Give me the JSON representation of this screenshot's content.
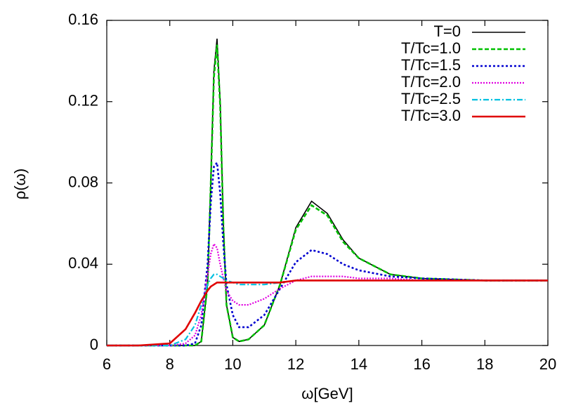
{
  "chart_data": {
    "type": "line",
    "xlabel": "ω[GeV]",
    "ylabel": "ρ(ω)",
    "xlim": [
      6,
      20
    ],
    "xticks": [
      6,
      8,
      10,
      12,
      14,
      16,
      18,
      20
    ],
    "ylim": [
      0,
      0.16
    ],
    "yticks": [
      0,
      0.04,
      0.08,
      0.12,
      0.16
    ],
    "legend": "upper right",
    "x": [
      6,
      7,
      8,
      8.5,
      8.8,
      9.0,
      9.2,
      9.3,
      9.4,
      9.5,
      9.6,
      9.7,
      9.8,
      10,
      10.2,
      10.5,
      11,
      11.5,
      12,
      12.5,
      13,
      13.5,
      14,
      15,
      16,
      18,
      20
    ],
    "series": [
      {
        "name": "T=0",
        "color": "#000000",
        "values": [
          0,
          0,
          0,
          0,
          0,
          0.002,
          0.03,
          0.08,
          0.135,
          0.151,
          0.12,
          0.06,
          0.02,
          0.004,
          0.002,
          0.003,
          0.01,
          0.03,
          0.058,
          0.071,
          0.065,
          0.052,
          0.043,
          0.035,
          0.033,
          0.032,
          0.032
        ]
      },
      {
        "name": "T/Tc=1.0",
        "color": "#00c000",
        "values": [
          0,
          0,
          0,
          0,
          0,
          0.002,
          0.03,
          0.079,
          0.132,
          0.148,
          0.118,
          0.059,
          0.02,
          0.004,
          0.002,
          0.003,
          0.01,
          0.03,
          0.057,
          0.069,
          0.064,
          0.051,
          0.043,
          0.035,
          0.033,
          0.032,
          0.032
        ]
      },
      {
        "name": "T/Tc=1.5",
        "color": "#0000d0",
        "values": [
          0,
          0,
          0,
          0,
          0.001,
          0.01,
          0.04,
          0.07,
          0.088,
          0.09,
          0.075,
          0.05,
          0.03,
          0.015,
          0.009,
          0.009,
          0.015,
          0.028,
          0.041,
          0.047,
          0.045,
          0.04,
          0.037,
          0.034,
          0.033,
          0.032,
          0.032
        ]
      },
      {
        "name": "T/Tc=2.0",
        "color": "#e000e0",
        "values": [
          0,
          0,
          0,
          0.001,
          0.005,
          0.015,
          0.035,
          0.045,
          0.05,
          0.048,
          0.04,
          0.033,
          0.027,
          0.022,
          0.02,
          0.02,
          0.023,
          0.028,
          0.032,
          0.034,
          0.034,
          0.034,
          0.033,
          0.033,
          0.032,
          0.032,
          0.032
        ]
      },
      {
        "name": "T/Tc=2.5",
        "color": "#00c0e0",
        "values": [
          0,
          0,
          0,
          0.003,
          0.01,
          0.02,
          0.03,
          0.033,
          0.035,
          0.035,
          0.034,
          0.033,
          0.032,
          0.031,
          0.03,
          0.03,
          0.03,
          0.031,
          0.032,
          0.032,
          0.032,
          0.032,
          0.032,
          0.032,
          0.032,
          0.032,
          0.032
        ]
      },
      {
        "name": "T/Tc=3.0",
        "color": "#e00000",
        "values": [
          0,
          0,
          0.001,
          0.008,
          0.016,
          0.022,
          0.027,
          0.029,
          0.03,
          0.031,
          0.031,
          0.031,
          0.031,
          0.031,
          0.031,
          0.031,
          0.031,
          0.031,
          0.032,
          0.032,
          0.032,
          0.032,
          0.032,
          0.032,
          0.032,
          0.032,
          0.032
        ]
      }
    ]
  }
}
